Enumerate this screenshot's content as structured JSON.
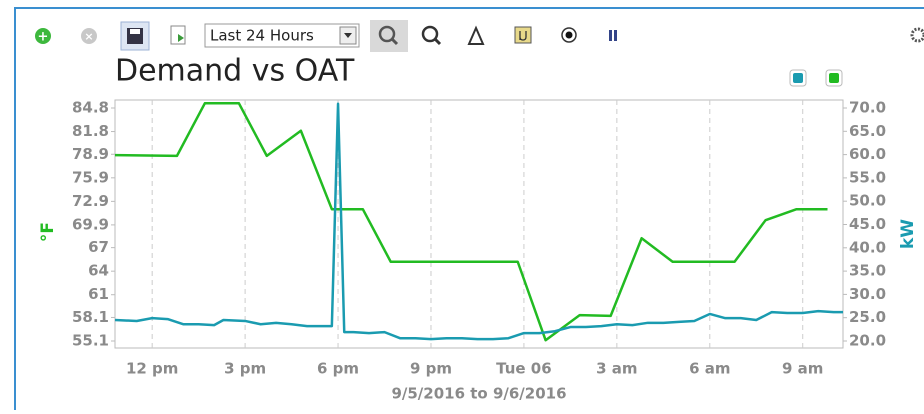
{
  "toolbar": {
    "range": "Last 24 Hours"
  },
  "chart_data": {
    "type": "line",
    "title": "Demand vs OAT",
    "ylabel": "°F",
    "y2label": "kW",
    "xlabel": "9/5/2016 to 9/6/2016",
    "xlim": [
      10.8,
      34.3
    ],
    "xticks": [
      {
        "value": 12,
        "label": "12 pm"
      },
      {
        "value": 15,
        "label": "3 pm"
      },
      {
        "value": 18,
        "label": "6 pm"
      },
      {
        "value": 21,
        "label": "9 pm"
      },
      {
        "value": 24,
        "label": "Tue 06"
      },
      {
        "value": 27,
        "label": "3 am"
      },
      {
        "value": 30,
        "label": "6 am"
      },
      {
        "value": 33,
        "label": "9 am"
      }
    ],
    "ylim": [
      55.1,
      84.8
    ],
    "yticks": [
      55.1,
      58.1,
      61.0,
      64.0,
      67.0,
      69.9,
      72.9,
      75.9,
      78.9,
      81.8,
      84.8
    ],
    "y2lim": [
      20,
      70
    ],
    "y2ticks": [
      {
        "value": 20,
        "label": "20.0"
      },
      {
        "value": 25,
        "label": "25.0"
      },
      {
        "value": 30,
        "label": "30.0"
      },
      {
        "value": 35,
        "label": "35.0"
      },
      {
        "value": 40,
        "label": "40.0"
      },
      {
        "value": 45,
        "label": "45.0"
      },
      {
        "value": 50,
        "label": "50.0"
      },
      {
        "value": 55,
        "label": "55.0"
      },
      {
        "value": 60,
        "label": "60.0"
      },
      {
        "value": 65,
        "label": "65.0"
      },
      {
        "value": 70,
        "label": "70.0"
      }
    ],
    "grid": "x",
    "series": [
      {
        "color": "#22bb22",
        "axis": "y",
        "x": [
          10.8,
          12.8,
          13.7,
          14.8,
          15.7,
          16.8,
          17.8,
          18.8,
          19.7,
          23.8,
          24.7,
          25.8,
          26.8,
          27.8,
          28.8,
          30.8,
          31.8,
          32.8,
          33.8
        ],
        "values": [
          78.8,
          78.7,
          85.4,
          85.4,
          78.7,
          81.9,
          71.9,
          71.9,
          65.2,
          65.2,
          55.2,
          58.4,
          58.3,
          68.2,
          65.2,
          65.2,
          70.5,
          71.9,
          71.9
        ]
      },
      {
        "color": "#1a9bb0",
        "axis": "y2",
        "x": [
          10.8,
          11.5,
          12.0,
          12.5,
          13.0,
          13.5,
          14.0,
          14.3,
          15.0,
          15.5,
          16.0,
          16.5,
          17.0,
          17.5,
          17.8,
          18.0,
          18.2,
          18.5,
          19.0,
          19.5,
          20.0,
          20.5,
          21.0,
          21.5,
          22.0,
          22.5,
          23.0,
          23.5,
          24.0,
          24.5,
          25.0,
          25.5,
          26.0,
          26.5,
          27.0,
          27.5,
          28.0,
          28.5,
          29.0,
          29.5,
          30.0,
          30.5,
          31.0,
          31.5,
          32.0,
          32.5,
          33.0,
          33.5,
          34.0,
          34.3
        ],
        "values": [
          24.5,
          24.3,
          24.9,
          24.7,
          23.6,
          23.6,
          23.4,
          24.5,
          24.3,
          23.6,
          23.9,
          23.6,
          23.2,
          23.2,
          23.2,
          70.9,
          21.9,
          21.9,
          21.7,
          21.9,
          20.6,
          20.6,
          20.4,
          20.6,
          20.6,
          20.4,
          20.4,
          20.6,
          21.7,
          21.7,
          22.1,
          23.0,
          23.0,
          23.2,
          23.6,
          23.4,
          23.9,
          23.9,
          24.1,
          24.3,
          25.8,
          24.9,
          24.9,
          24.5,
          26.2,
          26.0,
          26.0,
          26.4,
          26.2,
          26.2
        ]
      }
    ]
  }
}
